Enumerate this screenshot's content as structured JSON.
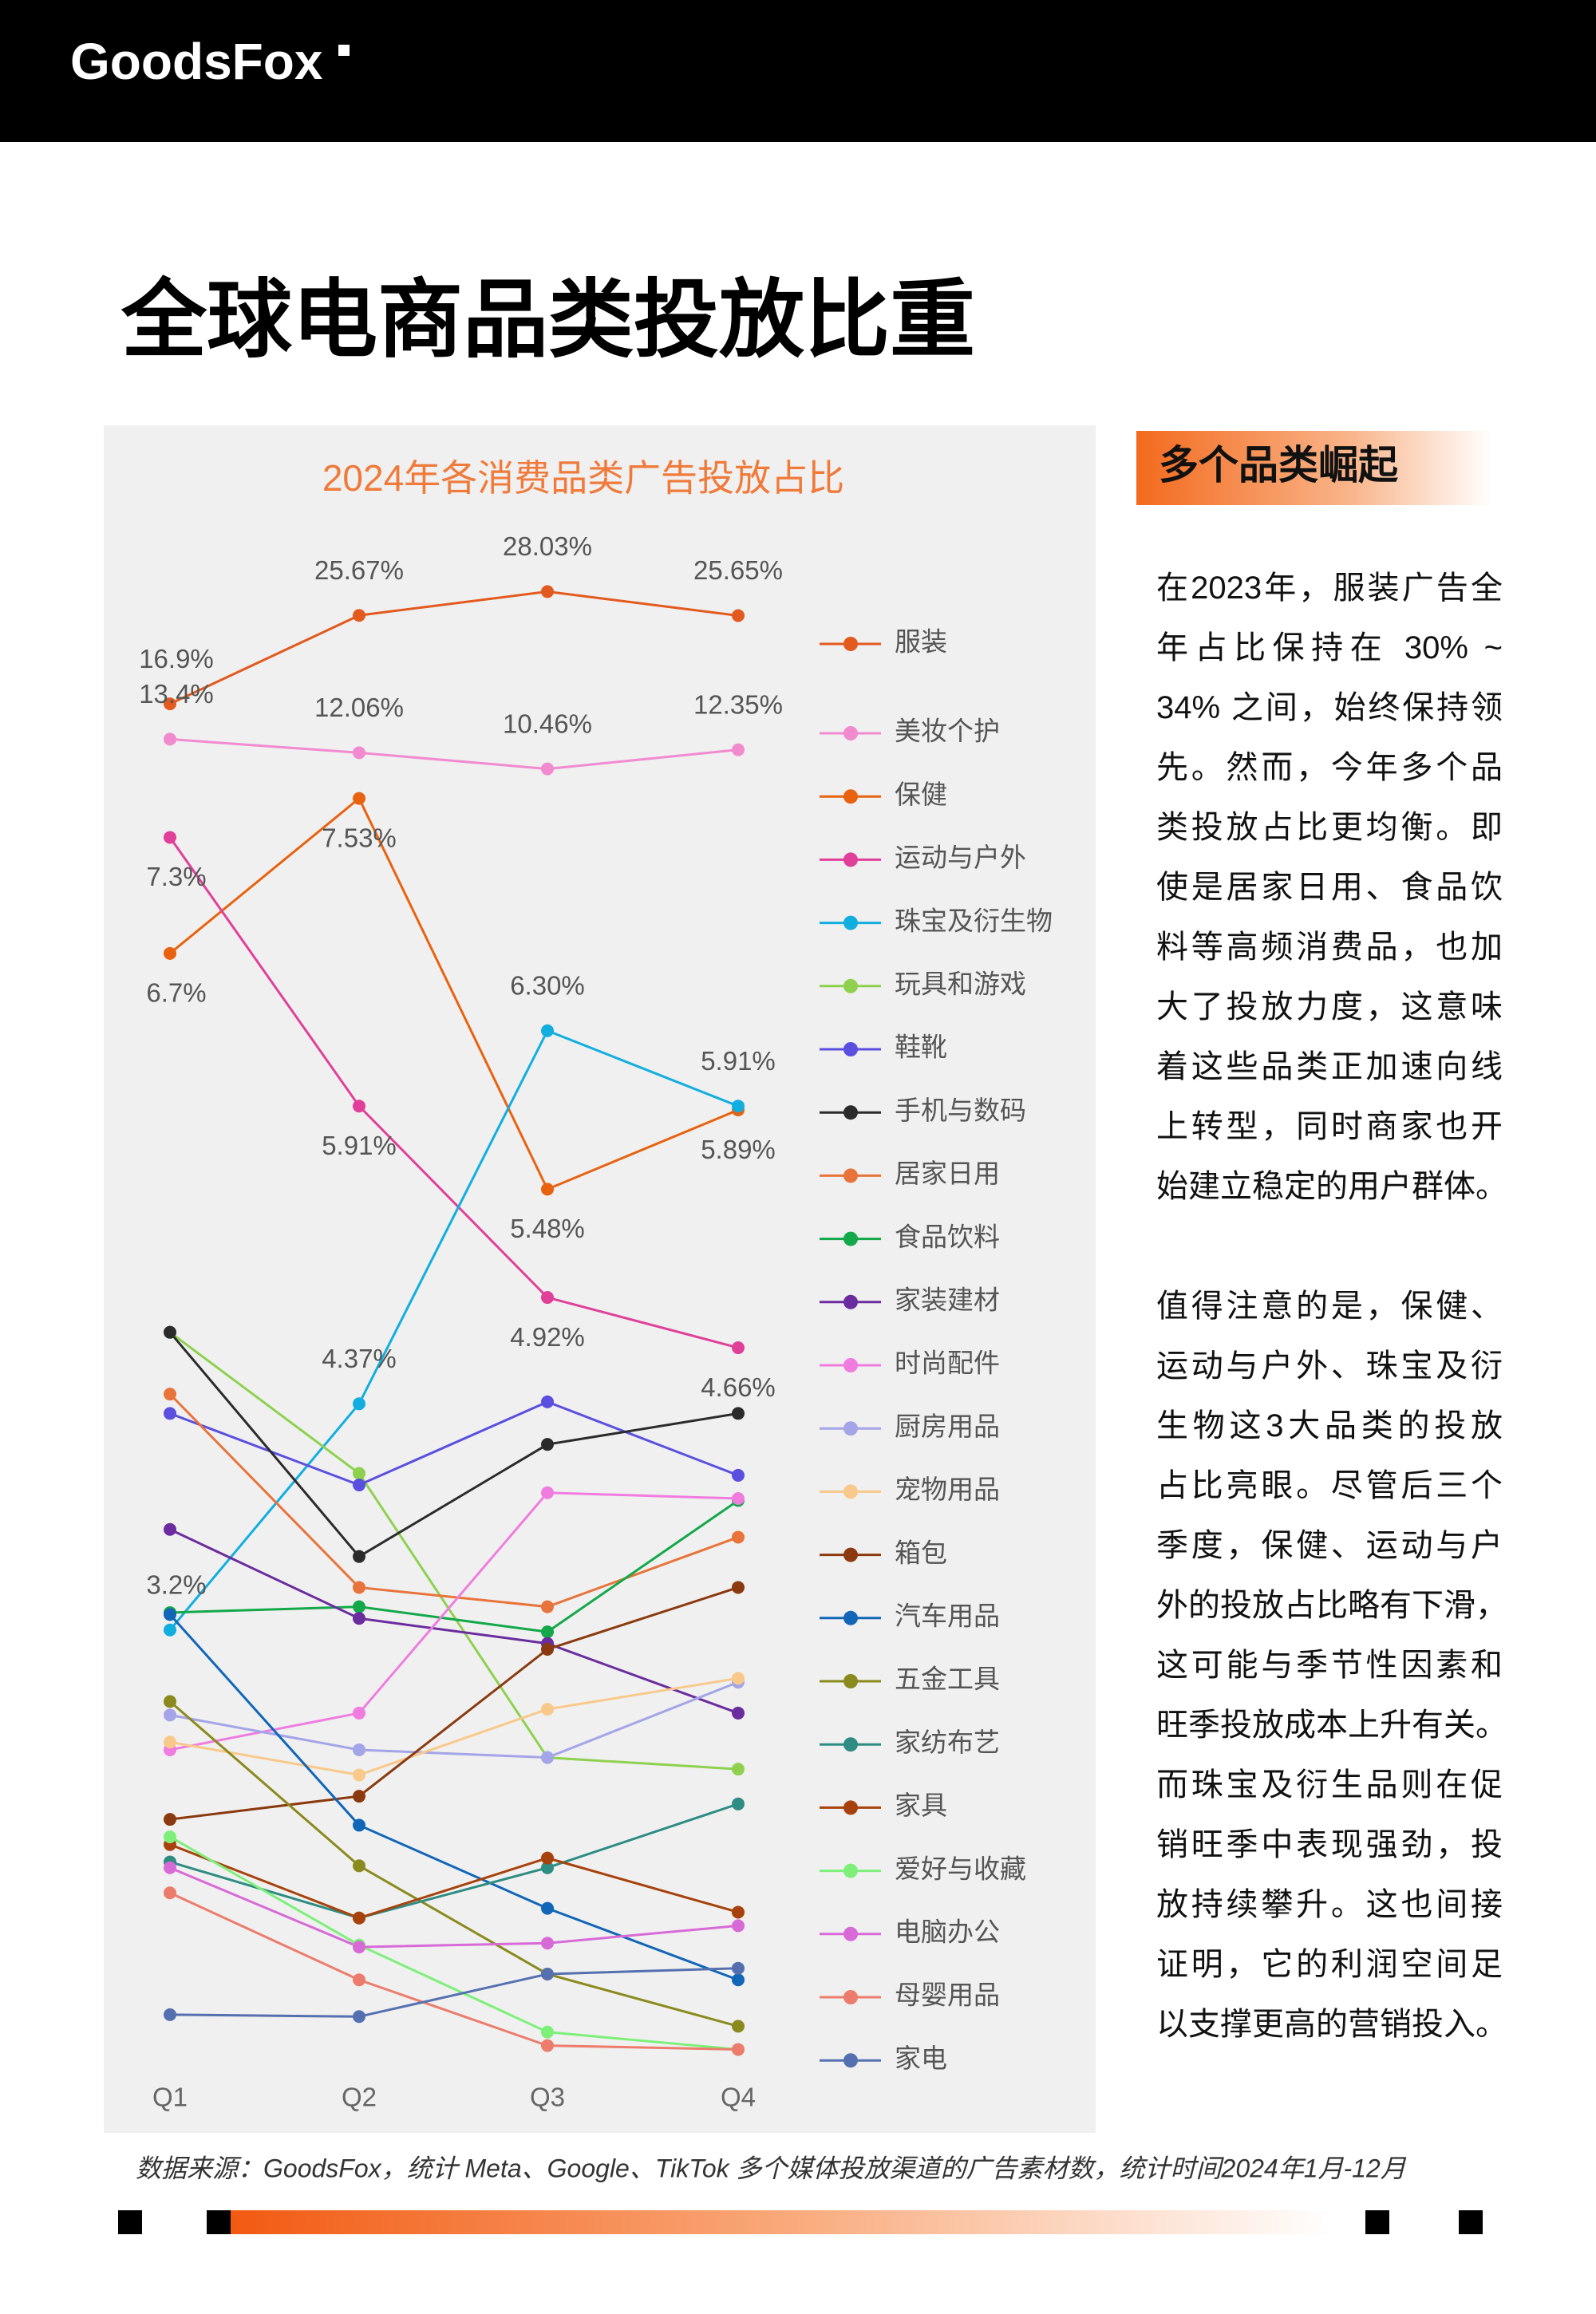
{
  "header": {
    "logo": "GoodsFox"
  },
  "title": "全球电商品类投放比重",
  "chart_data": {
    "type": "line",
    "title": "2024年各消费品类广告投放占比",
    "categories": [
      "Q1",
      "Q2",
      "Q3",
      "Q4"
    ],
    "ylim": [
      0,
      30
    ],
    "series": [
      {
        "name": "服装",
        "color": "#e35a1f",
        "values": [
          16.9,
          25.67,
          28.03,
          25.65
        ],
        "value_labels": [
          "16.9%",
          "25.67%",
          "28.03%",
          "25.65%"
        ]
      },
      {
        "name": "美妆个护",
        "color": "#f28ad0",
        "values": [
          13.4,
          12.06,
          10.46,
          12.35
        ],
        "value_labels": [
          "13.4%",
          "12.06%",
          "10.46%",
          "12.35%"
        ]
      },
      {
        "name": "保健",
        "color": "#e8620f",
        "values": [
          6.7,
          7.53,
          5.48,
          5.89
        ],
        "value_labels": [
          "6.7%",
          "7.53%",
          "5.48%",
          "5.89%"
        ]
      },
      {
        "name": "运动与户外",
        "color": "#e0409a",
        "values": [
          7.3,
          5.91,
          4.92,
          4.66
        ],
        "value_labels": [
          "7.3%",
          "5.91%",
          "4.92%",
          "4.66%"
        ]
      },
      {
        "name": "珠宝及衍生物",
        "color": "#12aee0",
        "values": [
          3.2,
          4.37,
          6.3,
          5.91
        ],
        "value_labels": [
          "3.2%",
          "4.37%",
          "6.30%",
          "5.91%"
        ]
      },
      {
        "name": "玩具和游戏",
        "color": "#8fd14f",
        "values": [
          4.74,
          4.01,
          2.54,
          2.48
        ]
      },
      {
        "name": "鞋靴",
        "color": "#5b4fe0",
        "values": [
          4.32,
          3.95,
          4.38,
          4.0
        ]
      },
      {
        "name": "手机与数码",
        "color": "#2b2b2b",
        "values": [
          4.74,
          3.58,
          4.16,
          4.32
        ]
      },
      {
        "name": "居家日用",
        "color": "#e8743b",
        "values": [
          4.42,
          3.42,
          3.32,
          3.68
        ]
      },
      {
        "name": "食品饮料",
        "color": "#13a84a",
        "values": [
          3.29,
          3.32,
          3.19,
          3.87
        ]
      },
      {
        "name": "家装建材",
        "color": "#6a2c9e",
        "values": [
          3.72,
          3.26,
          3.13,
          2.77
        ]
      },
      {
        "name": "时尚配件",
        "color": "#f07ce0",
        "values": [
          2.58,
          2.77,
          3.91,
          3.88
        ]
      },
      {
        "name": "厨房用品",
        "color": "#a4a4e8",
        "values": [
          2.76,
          2.58,
          2.54,
          2.93
        ]
      },
      {
        "name": "宠物用品",
        "color": "#f8c98a",
        "values": [
          2.62,
          2.45,
          2.79,
          2.95
        ]
      },
      {
        "name": "箱包",
        "color": "#8b3a0f",
        "values": [
          2.22,
          2.34,
          3.1,
          3.42
        ]
      },
      {
        "name": "汽车用品",
        "color": "#1166b8",
        "values": [
          3.28,
          2.19,
          1.76,
          1.39
        ]
      },
      {
        "name": "五金工具",
        "color": "#8a8a1e",
        "values": [
          2.83,
          1.98,
          1.42,
          1.15
        ]
      },
      {
        "name": "家纺布艺",
        "color": "#2e8c82",
        "values": [
          2.0,
          1.71,
          1.97,
          2.3
        ]
      },
      {
        "name": "家具",
        "color": "#a8420c",
        "values": [
          2.09,
          1.71,
          2.02,
          1.74
        ]
      },
      {
        "name": "爱好与收藏",
        "color": "#7ef07a",
        "values": [
          2.13,
          1.57,
          1.12,
          1.03
        ]
      },
      {
        "name": "电脑办公",
        "color": "#d86ad8",
        "values": [
          1.97,
          1.56,
          1.58,
          1.67
        ]
      },
      {
        "name": "母婴用品",
        "color": "#ec7c6c",
        "values": [
          1.84,
          1.39,
          1.05,
          1.03
        ]
      },
      {
        "name": "家电",
        "color": "#5570b0",
        "values": [
          1.21,
          1.2,
          1.42,
          1.45
        ]
      }
    ]
  },
  "sidebar": {
    "heading": "多个品类崛起",
    "paragraphs": [
      [
        "在2023年，服装广告全",
        "年占比保持在 30% ~",
        "34% 之间，始终保持领",
        "先。然而，今年多个品",
        "类投放占比更均衡。即",
        "使是居家日用、食品饮",
        "料等高频消费品，也加",
        "大了投放力度，这意味",
        "着这些品类正加速向线",
        "上转型，同时商家也开",
        "始建立稳定的用户群体。"
      ],
      [
        "值得注意的是，保健、",
        "运动与户外、珠宝及衍",
        "生物这3大品类的投放",
        "占比亮眼。尽管后三个",
        "季度，保健、运动与户",
        "外的投放占比略有下滑，",
        "这可能与季节性因素和",
        "旺季投放成本上升有关。",
        "而珠宝及衍生品则在促",
        "销旺季中表现强劲，投",
        "放持续攀升。这也间接",
        "证明，它的利润空间足",
        "以支撑更高的营销投入。"
      ]
    ]
  },
  "footer": {
    "source": "数据来源：GoodsFox，统计 Meta、Google、TikTok 多个媒体投放渠道的广告素材数，统计时间2024年1月-12月"
  }
}
